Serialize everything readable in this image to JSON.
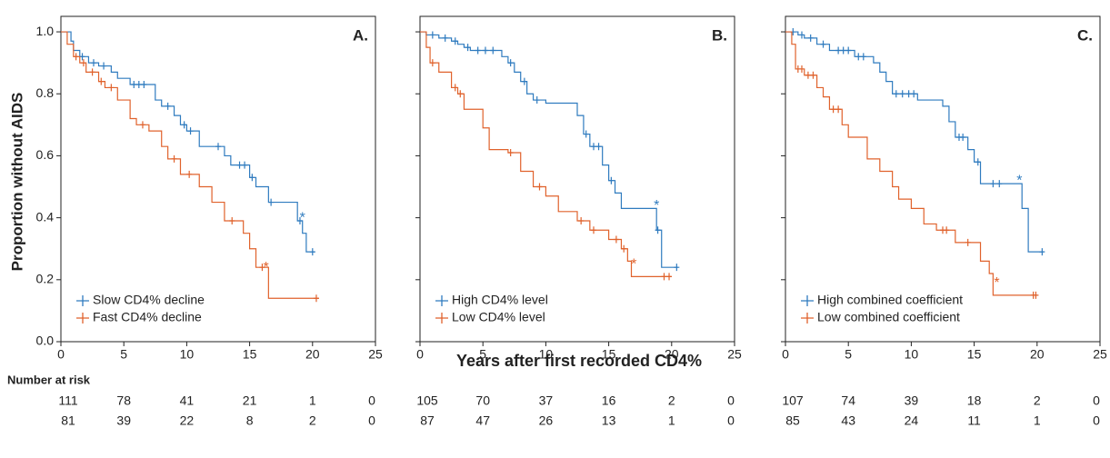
{
  "x_label": "Years after first recorded CD4%",
  "y_label": "Proportion without AIDS",
  "risk_title": "Number at risk",
  "chart_data": [
    {
      "type": "step",
      "panel_label": "A.",
      "xlim": [
        0,
        25
      ],
      "xticks": [
        0,
        5,
        10,
        15,
        20,
        25
      ],
      "ylim": [
        0,
        1.05
      ],
      "yticks": [
        {
          "value": 0,
          "label": "0.0"
        },
        0.2,
        0.4,
        0.6,
        0.8,
        {
          "value": 1,
          "label": "1.0"
        }
      ],
      "show_ytick_labels": true,
      "legend": "lower left",
      "series": [
        {
          "name": "Slow CD4% decline",
          "color": "#2f7bbf",
          "x": [
            0,
            0.8,
            1.0,
            1.5,
            2.2,
            3.0,
            4.0,
            4.5,
            5.5,
            7.5,
            8.0,
            9.0,
            9.5,
            10.0,
            11.0,
            13.0,
            13.5,
            15.0,
            15.5,
            16.5,
            18.8,
            19.2,
            19.5,
            20.2
          ],
          "values": [
            1.0,
            0.97,
            0.94,
            0.92,
            0.9,
            0.89,
            0.87,
            0.85,
            0.83,
            0.78,
            0.76,
            0.73,
            0.7,
            0.68,
            0.63,
            0.6,
            0.57,
            0.53,
            0.5,
            0.45,
            0.39,
            0.35,
            0.29,
            0.29
          ],
          "censor": [
            1.7,
            2.6,
            3.4,
            5.8,
            6.2,
            6.6,
            8.5,
            9.8,
            10.3,
            12.5,
            14.2,
            14.6,
            15.2,
            16.7,
            19.0,
            20.0
          ],
          "star": {
            "x": 19.2,
            "y": 0.41,
            "label": "*"
          },
          "at_risk": [
            111,
            78,
            41,
            21,
            1,
            0
          ]
        },
        {
          "name": "Fast CD4% decline",
          "color": "#e0622c",
          "x": [
            0,
            0.5,
            1.0,
            1.5,
            2.0,
            3.0,
            3.5,
            4.5,
            5.5,
            6.0,
            7.0,
            8.0,
            8.5,
            9.5,
            11.0,
            12.0,
            13.0,
            14.5,
            15.0,
            15.5,
            16.5,
            20.5
          ],
          "values": [
            1.0,
            0.96,
            0.92,
            0.9,
            0.87,
            0.84,
            0.82,
            0.78,
            0.72,
            0.7,
            0.68,
            0.63,
            0.59,
            0.54,
            0.5,
            0.45,
            0.39,
            0.35,
            0.3,
            0.24,
            0.14,
            0.14
          ],
          "censor": [
            1.2,
            1.8,
            2.5,
            3.2,
            4.0,
            6.5,
            9.0,
            10.2,
            13.6,
            16.0,
            20.3
          ],
          "star": {
            "x": 16.3,
            "y": 0.25,
            "label": "*"
          },
          "at_risk": [
            81,
            39,
            22,
            8,
            2,
            0
          ]
        }
      ]
    },
    {
      "type": "step",
      "panel_label": "B.",
      "xlim": [
        0,
        25
      ],
      "xticks": [
        0,
        5,
        10,
        15,
        20,
        25
      ],
      "ylim": [
        0,
        1.05
      ],
      "yticks": [
        0,
        0.2,
        0.4,
        0.6,
        0.8,
        1
      ],
      "show_ytick_labels": false,
      "legend": "lower left",
      "series": [
        {
          "name": "High CD4% level",
          "color": "#2f7bbf",
          "x": [
            0,
            0.5,
            1.5,
            2.5,
            3.0,
            3.5,
            4.0,
            6.5,
            7.0,
            7.5,
            8.0,
            8.5,
            9.0,
            10.0,
            12.5,
            13.0,
            13.5,
            14.5,
            15.0,
            15.5,
            16.0,
            18.8,
            19.2,
            20.5
          ],
          "values": [
            1.0,
            0.99,
            0.98,
            0.97,
            0.96,
            0.95,
            0.94,
            0.92,
            0.9,
            0.87,
            0.84,
            0.8,
            0.78,
            0.77,
            0.73,
            0.67,
            0.63,
            0.57,
            0.52,
            0.48,
            0.43,
            0.36,
            0.24,
            0.24
          ],
          "censor": [
            1.0,
            2.0,
            2.8,
            3.8,
            4.6,
            5.2,
            5.8,
            7.2,
            8.3,
            9.3,
            13.2,
            13.8,
            14.2,
            15.2,
            18.9,
            20.4
          ],
          "star": {
            "x": 18.8,
            "y": 0.45,
            "label": "*"
          },
          "at_risk": [
            105,
            70,
            37,
            16,
            2,
            0
          ]
        },
        {
          "name": "Low CD4% level",
          "color": "#e0622c",
          "x": [
            0,
            0.5,
            0.8,
            1.5,
            2.5,
            3.0,
            3.5,
            5.0,
            5.5,
            7.0,
            8.0,
            9.0,
            10.0,
            11.0,
            12.5,
            13.5,
            15.0,
            16.0,
            16.5,
            16.8,
            20.0
          ],
          "values": [
            1.0,
            0.95,
            0.9,
            0.87,
            0.82,
            0.8,
            0.75,
            0.69,
            0.62,
            0.61,
            0.55,
            0.5,
            0.47,
            0.42,
            0.39,
            0.36,
            0.33,
            0.3,
            0.26,
            0.21,
            0.21
          ],
          "censor": [
            1.0,
            2.8,
            3.2,
            7.2,
            9.5,
            12.8,
            13.8,
            15.6,
            16.2,
            19.4,
            19.8
          ],
          "star": {
            "x": 17.0,
            "y": 0.26,
            "label": "*"
          },
          "at_risk": [
            87,
            47,
            26,
            13,
            1,
            0
          ]
        }
      ]
    },
    {
      "type": "step",
      "panel_label": "C.",
      "xlim": [
        0,
        25
      ],
      "xticks": [
        0,
        5,
        10,
        15,
        20,
        25
      ],
      "ylim": [
        0,
        1.05
      ],
      "yticks": [
        0,
        0.2,
        0.4,
        0.6,
        0.8,
        1
      ],
      "show_ytick_labels": false,
      "legend": "lower left",
      "series": [
        {
          "name": "High combined coefficient",
          "color": "#2f7bbf",
          "x": [
            0,
            1.0,
            1.5,
            2.5,
            3.5,
            5.5,
            7.0,
            7.5,
            8.0,
            8.5,
            10.5,
            12.5,
            13.0,
            13.5,
            14.5,
            15.0,
            15.5,
            18.8,
            19.3,
            20.5
          ],
          "values": [
            1.0,
            0.99,
            0.98,
            0.96,
            0.94,
            0.92,
            0.9,
            0.87,
            0.84,
            0.8,
            0.78,
            0.76,
            0.71,
            0.66,
            0.62,
            0.58,
            0.51,
            0.43,
            0.29,
            0.29
          ],
          "censor": [
            0.6,
            1.3,
            2.0,
            3.0,
            4.2,
            4.6,
            5.0,
            5.8,
            6.2,
            8.8,
            9.3,
            9.8,
            10.2,
            13.8,
            14.1,
            15.3,
            16.5,
            17.0,
            20.4
          ],
          "star": {
            "x": 18.6,
            "y": 0.53,
            "label": "*"
          },
          "at_risk": [
            107,
            74,
            39,
            18,
            2,
            0
          ]
        },
        {
          "name": "Low combined coefficient",
          "color": "#e0622c",
          "x": [
            0,
            0.5,
            0.8,
            1.5,
            2.5,
            3.0,
            3.5,
            4.5,
            5.0,
            6.5,
            7.5,
            8.5,
            9.0,
            10.0,
            11.0,
            12.0,
            13.5,
            15.5,
            16.2,
            16.5,
            20.0
          ],
          "values": [
            1.0,
            0.96,
            0.88,
            0.86,
            0.82,
            0.79,
            0.75,
            0.7,
            0.66,
            0.59,
            0.55,
            0.5,
            0.46,
            0.43,
            0.38,
            0.36,
            0.32,
            0.26,
            0.22,
            0.15,
            0.15
          ],
          "censor": [
            1.0,
            1.3,
            1.8,
            2.2,
            3.8,
            4.2,
            12.5,
            12.8,
            14.5,
            19.7,
            19.9
          ],
          "star": {
            "x": 16.8,
            "y": 0.2,
            "label": "*"
          },
          "at_risk": [
            85,
            43,
            24,
            11,
            1,
            0
          ]
        }
      ]
    }
  ]
}
